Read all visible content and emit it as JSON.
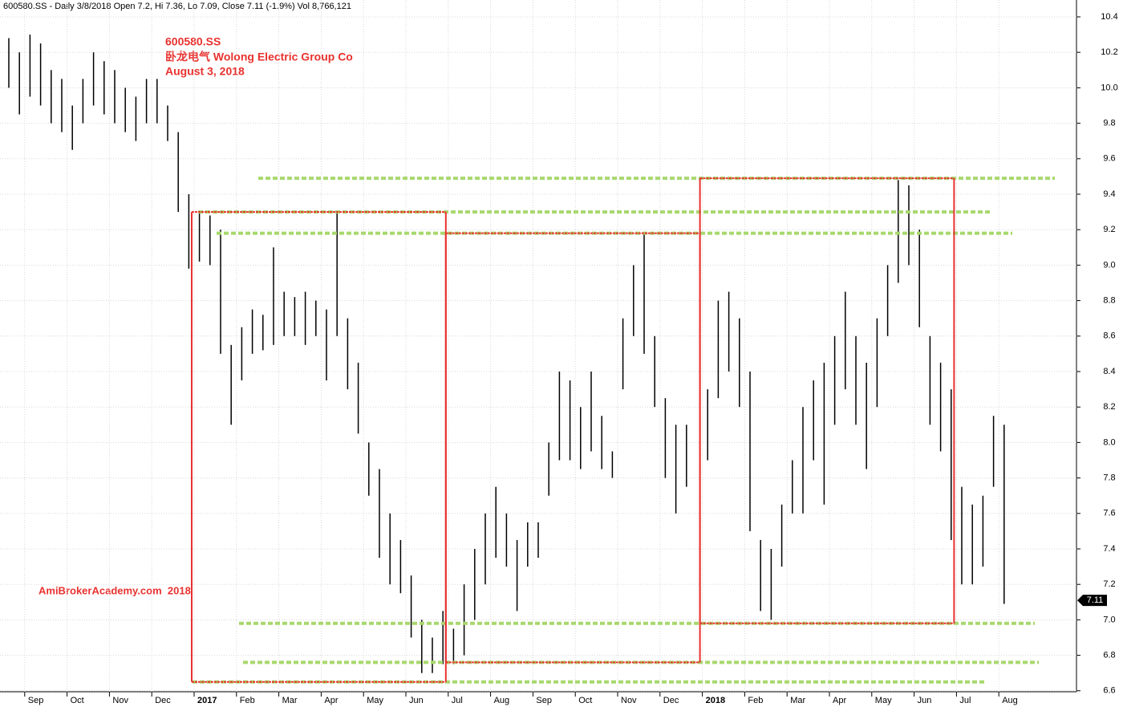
{
  "chart_data": {
    "type": "hilo",
    "header": "600580.SS - Daily 3/8/2018 Open 7.2, Hi 7.36, Lo 7.09, Close 7.11 (-1.9%) Vol 8,766,121",
    "annotations": [
      "600580.SS",
      "卧龙电气 Wolong Electric Group Co",
      "August 3, 2018"
    ],
    "watermark": "AmiBrokerAcademy.com  2018",
    "color": "#000000",
    "ylim": [
      6.59,
      10.495
    ],
    "yticks": [
      6.6,
      6.8,
      {
        "value": 7,
        "label": "7.0"
      },
      7.2,
      7.4,
      7.6,
      7.8,
      {
        "value": 8,
        "label": "8.0"
      },
      8.2,
      8.4,
      8.6,
      8.8,
      {
        "value": 9,
        "label": "9.0"
      },
      9.2,
      9.4,
      9.6,
      9.8,
      {
        "value": 10,
        "label": "10.0"
      },
      10.2,
      10.4
    ],
    "grid": true,
    "last_value": 7.11,
    "last_value_label": "7.11",
    "levels": [
      9.49,
      9.3,
      9.18,
      6.98,
      6.76,
      6.65
    ],
    "level_color": "#a8d86e",
    "boxes": [
      {
        "top": 9.3,
        "bottom": 6.65
      },
      {
        "top": 9.18,
        "bottom": 6.76
      },
      {
        "top": 9.49,
        "bottom": 6.98
      }
    ],
    "box_color": "#e8322f",
    "periods": [
      {
        "label": null,
        "highs": [
          10.28,
          10.2
        ],
        "lows": [
          10.0,
          9.85
        ]
      },
      {
        "label": "Sep",
        "highs": [
          10.3,
          10.25,
          10.1,
          10.05
        ],
        "lows": [
          9.95,
          9.9,
          9.8,
          9.75
        ]
      },
      {
        "label": "Oct",
        "highs": [
          9.9,
          10.05,
          10.2,
          10.15
        ],
        "lows": [
          9.65,
          9.8,
          9.9,
          9.85
        ]
      },
      {
        "label": "Nov",
        "highs": [
          10.1,
          10.0,
          9.95,
          10.05
        ],
        "lows": [
          9.8,
          9.75,
          9.7,
          9.8
        ]
      },
      {
        "label": "Dec",
        "highs": [
          10.05,
          9.9,
          9.75,
          9.4
        ],
        "lows": [
          9.8,
          9.7,
          9.3,
          8.98
        ]
      },
      {
        "label": "2017",
        "highs": [
          9.3,
          9.28,
          9.2,
          8.55
        ],
        "lows": [
          9.02,
          9.0,
          8.5,
          8.1
        ]
      },
      {
        "label": "Feb",
        "highs": [
          8.65,
          8.75,
          8.72,
          9.1
        ],
        "lows": [
          8.35,
          8.5,
          8.52,
          8.55
        ]
      },
      {
        "label": "Mar",
        "highs": [
          8.85,
          8.82,
          8.85,
          8.8
        ],
        "lows": [
          8.6,
          8.6,
          8.55,
          8.6
        ]
      },
      {
        "label": "Apr",
        "highs": [
          8.75,
          9.3,
          8.7,
          8.45
        ],
        "lows": [
          8.35,
          8.6,
          8.3,
          8.05
        ]
      },
      {
        "label": "May",
        "highs": [
          8.0,
          7.85,
          7.6,
          7.45
        ],
        "lows": [
          7.7,
          7.35,
          7.2,
          7.15
        ]
      },
      {
        "label": "Jun",
        "highs": [
          7.25,
          7.0,
          6.9,
          7.05
        ],
        "lows": [
          6.9,
          6.7,
          6.7,
          6.75
        ]
      },
      {
        "label": "Jul",
        "highs": [
          6.95,
          7.2,
          7.4,
          7.6
        ],
        "lows": [
          6.75,
          6.8,
          7.0,
          7.2
        ]
      },
      {
        "label": "Aug",
        "highs": [
          7.75,
          7.6,
          7.45,
          7.55
        ],
        "lows": [
          7.35,
          7.3,
          7.05,
          7.3
        ]
      },
      {
        "label": "Sep",
        "highs": [
          7.55,
          8.0,
          8.4,
          8.35
        ],
        "lows": [
          7.35,
          7.7,
          7.9,
          7.9
        ]
      },
      {
        "label": "Oct",
        "highs": [
          8.2,
          8.4,
          8.15,
          7.95
        ],
        "lows": [
          7.85,
          7.95,
          7.85,
          7.8
        ]
      },
      {
        "label": "Nov",
        "highs": [
          8.7,
          9.0,
          9.18,
          8.6
        ],
        "lows": [
          8.3,
          8.6,
          8.5,
          8.2
        ]
      },
      {
        "label": "Dec",
        "highs": [
          8.25,
          8.1,
          8.1,
          7.9
        ],
        "lows": [
          7.8,
          7.6,
          7.75,
          7.9
        ]
      },
      {
        "label": "2018",
        "highs": [
          8.3,
          8.8,
          8.85,
          8.7
        ],
        "lows": [
          7.9,
          8.25,
          8.4,
          8.2
        ]
      },
      {
        "label": "Feb",
        "highs": [
          8.4,
          7.45,
          7.4,
          7.65
        ],
        "lows": [
          7.5,
          7.05,
          7.0,
          7.3
        ]
      },
      {
        "label": "Mar",
        "highs": [
          7.9,
          8.2,
          8.35,
          8.45
        ],
        "lows": [
          7.6,
          7.6,
          7.9,
          7.65
        ]
      },
      {
        "label": "Apr",
        "highs": [
          8.6,
          8.85,
          8.6,
          8.45
        ],
        "lows": [
          8.1,
          8.3,
          8.1,
          7.85
        ]
      },
      {
        "label": "May",
        "highs": [
          8.7,
          9.0,
          9.48,
          9.45
        ],
        "lows": [
          8.2,
          8.6,
          8.9,
          9.0
        ]
      },
      {
        "label": "Jun",
        "highs": [
          9.2,
          8.6,
          8.45,
          8.3
        ],
        "lows": [
          8.65,
          8.1,
          7.95,
          7.45
        ]
      },
      {
        "label": "Jul",
        "highs": [
          7.75,
          7.65,
          7.7,
          8.15
        ],
        "lows": [
          7.2,
          7.2,
          7.3,
          7.75
        ]
      },
      {
        "label": "Aug",
        "highs": [
          8.1
        ],
        "lows": [
          7.09
        ]
      }
    ]
  }
}
